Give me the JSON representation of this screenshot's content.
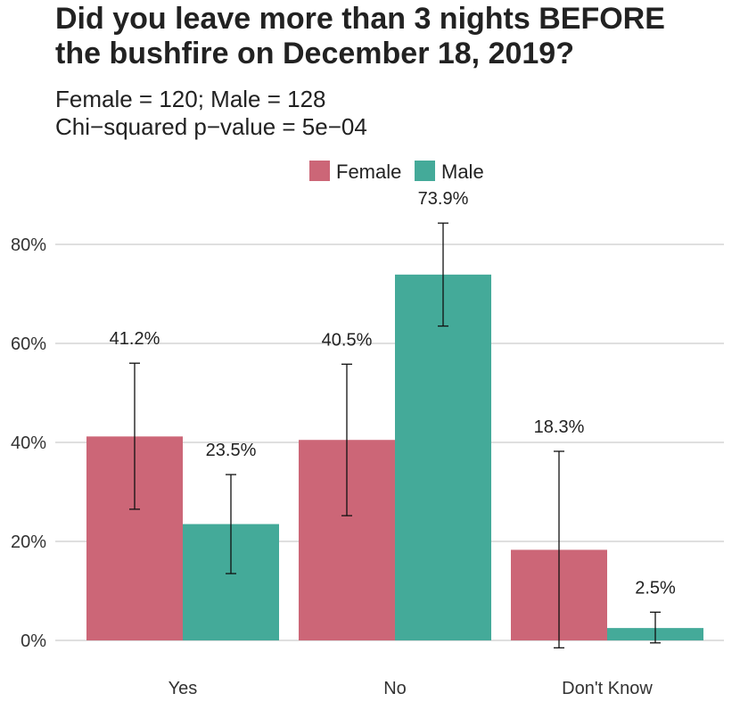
{
  "chart_data": {
    "type": "bar",
    "title_lines": [
      "Did you leave more than 3 nights BEFORE",
      "the bushfire on December 18, 2019?"
    ],
    "subtitle_lines": [
      "Female = 120; Male = 128",
      "Chi−squared p−value = 5e−04"
    ],
    "categories": [
      "Yes",
      "No",
      "Don't Know"
    ],
    "series": [
      {
        "name": "Female",
        "color": "#CC6677",
        "values": [
          41.2,
          40.5,
          18.3
        ],
        "labels": [
          "41.2%",
          "40.5%",
          "18.3%"
        ],
        "ci_low": [
          26.5,
          25.2,
          -1.5
        ],
        "ci_high": [
          56.0,
          55.8,
          38.2
        ]
      },
      {
        "name": "Male",
        "color": "#44AA99",
        "values": [
          23.5,
          73.9,
          2.5
        ],
        "labels": [
          "23.5%",
          "73.9%",
          "2.5%"
        ],
        "ci_low": [
          13.5,
          63.5,
          -0.5
        ],
        "ci_high": [
          33.5,
          84.3,
          5.7
        ]
      }
    ],
    "y_ticks": [
      0,
      20,
      40,
      60,
      80
    ],
    "y_tick_labels": [
      "0%",
      "20%",
      "40%",
      "60%",
      "80%"
    ],
    "ylim": [
      -2.5,
      87
    ],
    "grid": true,
    "legend_position": "top"
  }
}
